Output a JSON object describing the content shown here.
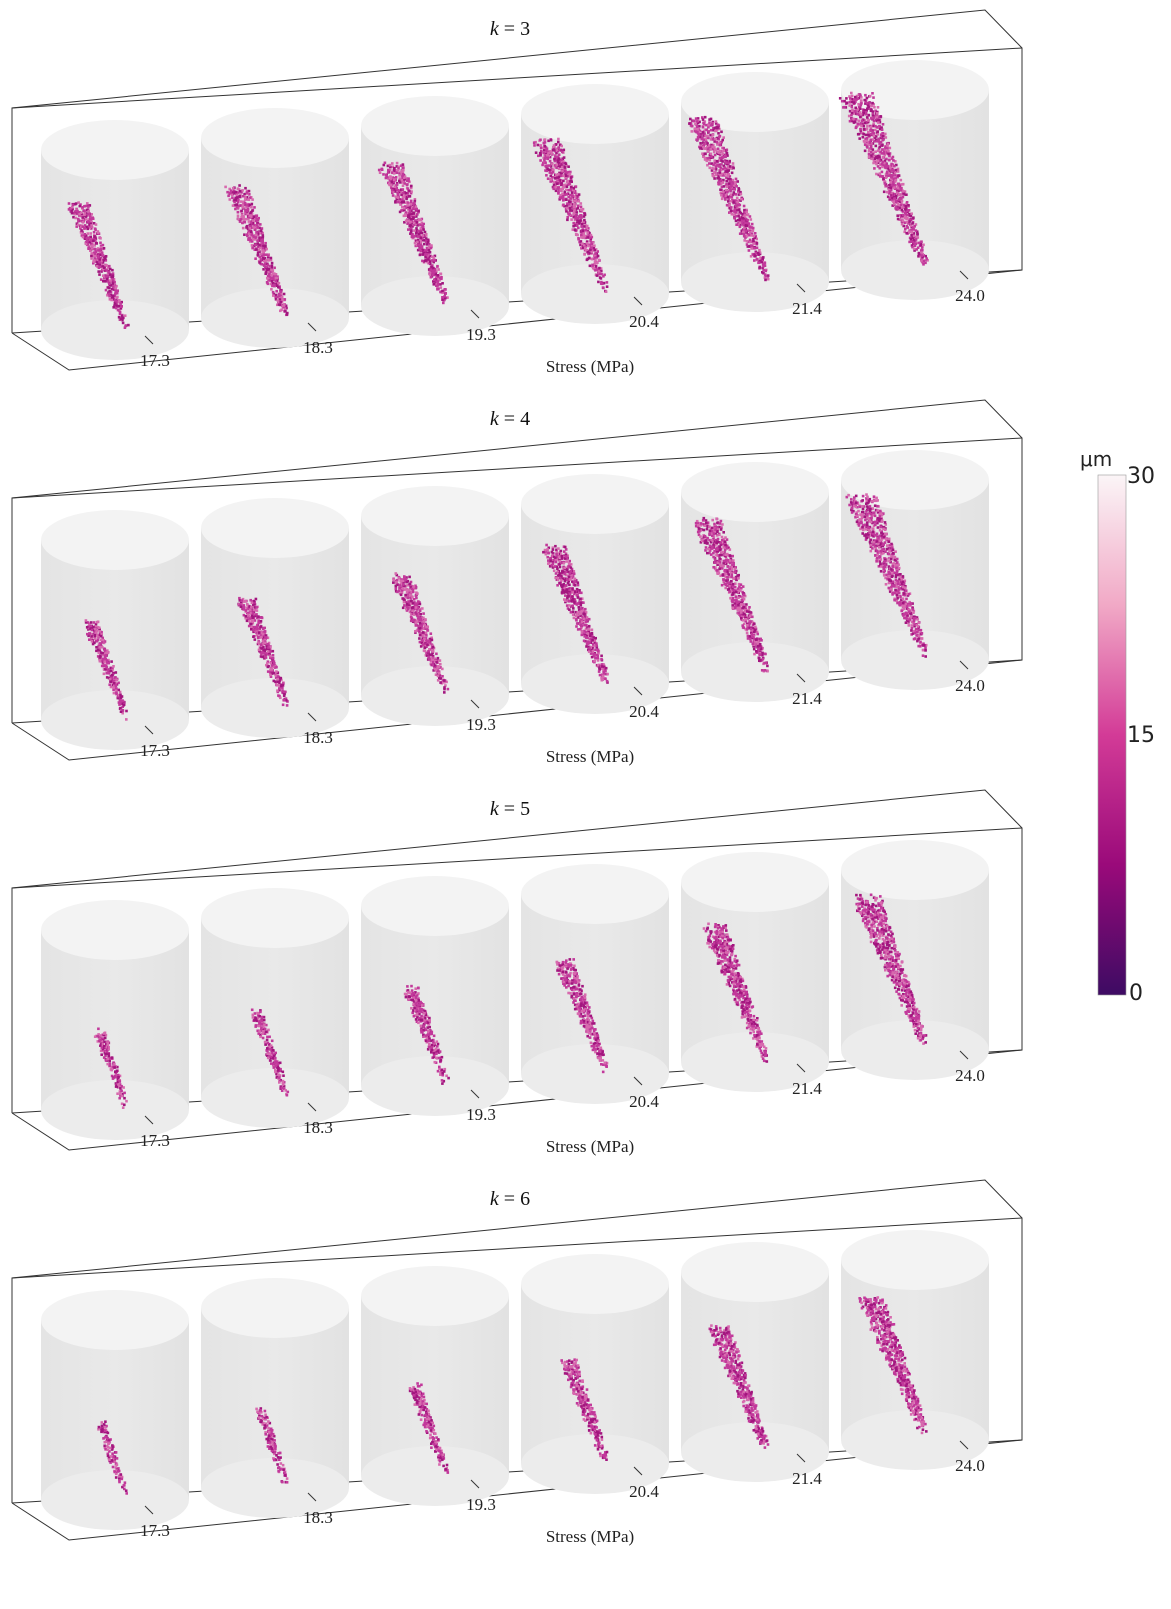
{
  "chart_data": {
    "type": "scatter",
    "description_type": "3D crack-aperture volumetric scatter per stress level",
    "panels": [
      {
        "title_var": "k",
        "title_value": "3",
        "xlabel": "Stress (MPa)",
        "categories": [
          "17.3",
          "18.3",
          "19.3",
          "20.4",
          "21.4",
          "24.0"
        ],
        "crack_extent": [
          0.55,
          0.6,
          0.7,
          0.8,
          0.9,
          1.0
        ]
      },
      {
        "title_var": "k",
        "title_value": "4",
        "xlabel": "Stress (MPa)",
        "categories": [
          "17.3",
          "18.3",
          "19.3",
          "20.4",
          "21.4",
          "24.0"
        ],
        "crack_extent": [
          0.3,
          0.4,
          0.5,
          0.65,
          0.8,
          0.9
        ]
      },
      {
        "title_var": "k",
        "title_value": "5",
        "xlabel": "Stress (MPa)",
        "categories": [
          "17.3",
          "18.3",
          "19.3",
          "20.4",
          "21.4",
          "24.0"
        ],
        "crack_extent": [
          0.15,
          0.2,
          0.3,
          0.45,
          0.65,
          0.8
        ]
      },
      {
        "title_var": "k",
        "title_value": "6",
        "xlabel": "Stress (MPa)",
        "categories": [
          "17.3",
          "18.3",
          "19.3",
          "20.4",
          "21.4",
          "24.0"
        ],
        "crack_extent": [
          0.1,
          0.12,
          0.22,
          0.35,
          0.55,
          0.7
        ]
      }
    ],
    "colorbar": {
      "unit": "μm",
      "ticks": [
        "30",
        "15",
        "0"
      ],
      "range": [
        0,
        30
      ],
      "colors": [
        "#3d0b63",
        "#9a0a7a",
        "#d33b97",
        "#f1a9c6",
        "#fbf5f7"
      ]
    }
  }
}
